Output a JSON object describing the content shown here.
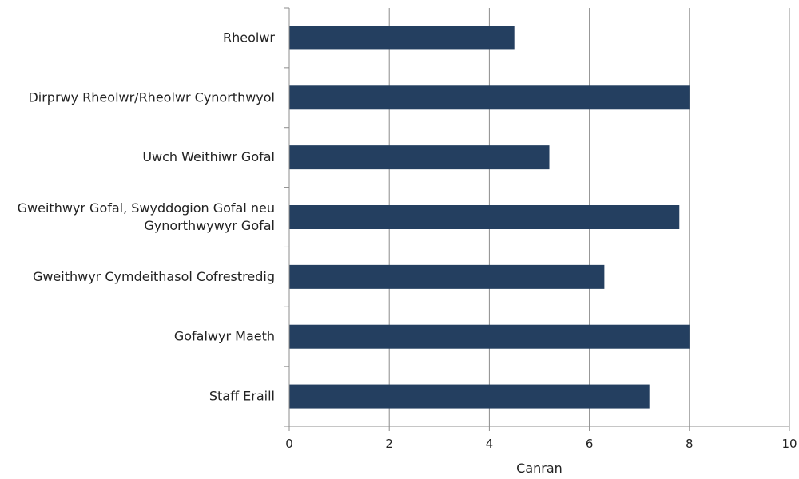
{
  "chart_data": {
    "type": "bar",
    "orientation": "horizontal",
    "categories": [
      "Rheolwr",
      "Dirprwy Rheolwr/Rheolwr Cynorthwyol",
      "Uwch Weithiwr Gofal",
      "Gweithwyr Gofal, Swyddogion Gofal neu Gynorthwywyr Gofal",
      "Gweithwyr Cymdeithasol Cofrestredig",
      "Gofalwyr Maeth",
      "Staff Eraill"
    ],
    "category_lines": [
      [
        "Rheolwr"
      ],
      [
        "Dirprwy Rheolwr/Rheolwr Cynorthwyol"
      ],
      [
        "Uwch Weithiwr Gofal"
      ],
      [
        "Gweithwyr Gofal, Swyddogion Gofal neu",
        "Gynorthwywyr Gofal"
      ],
      [
        "Gweithwyr Cymdeithasol Cofrestredig"
      ],
      [
        "Gofalwyr Maeth"
      ],
      [
        "Staff Eraill"
      ]
    ],
    "values": [
      4.5,
      8.0,
      5.2,
      7.8,
      6.3,
      8.0,
      7.2
    ],
    "xlabel": "Canran",
    "xlim": [
      0,
      10
    ],
    "xticks": [
      0,
      2,
      4,
      6,
      8,
      10
    ],
    "grid": "vertical",
    "bar_color": "#243F60",
    "grid_color": "#8C8C8C",
    "axis_color": "#8C8C8C"
  }
}
